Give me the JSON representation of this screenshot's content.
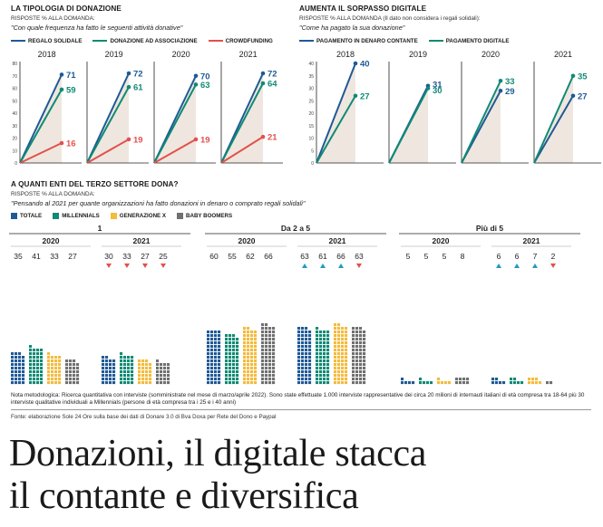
{
  "sections": {
    "donation_type": {
      "title": "LA TIPOLOGIA DI DONAZIONE",
      "subtitle": "RISPOSTE % ALLA DOMANDA:",
      "question": "\"Con quale frequenza ha fatto le seguenti attività donative\""
    },
    "digital": {
      "title": "AUMENTA IL SORPASSO DIGITALE",
      "subtitle": "RISPOSTE % ALLA DOMANDA (Il dato non considera i regali solidali):",
      "question": "\"Come ha pagato la sua donazione\""
    },
    "third_sector": {
      "title": "A QUANTI ENTI DEL TERZO SETTORE DONA?",
      "subtitle": "RISPOSTE % ALLA DOMANDA:",
      "question": "\"Pensando al 2021 per quante organizzazioni ha fatto donazioni in denaro o comprato regali solidali\""
    }
  },
  "note": "Nota metodologica: Ricerca quantitativa con interviste (somministrate nel mese di marzo/aprile 2022). Sono state effettuate 1.000 interviste rappresentative dei circa 20 milioni di internauti italiani di età compresa tra 18-64 più 30 interviste qualitative individuali a Millennials (persone di età compresa tra i 25 e i 40 anni)",
  "source": "Fonte: elaborazione Sole 24 Ore sulla base dei dati di Donare 3.0 di Bva Doxa per Rete del Dono e Paypal",
  "headline": {
    "line1": "Donazioni, il digitale stacca",
    "line2": "il contante e diversifica"
  },
  "colors": {
    "blue": "#1f5a96",
    "green": "#108a74",
    "red": "#e2514c",
    "yellow": "#f4bb3c",
    "gray": "#707070",
    "fill": "#efe7df"
  },
  "chart_data": [
    {
      "type": "line",
      "id": "donation_type",
      "panels": [
        "2018",
        "2019",
        "2020",
        "2021"
      ],
      "ylim": [
        0,
        80
      ],
      "yticks": [
        0,
        10,
        20,
        30,
        40,
        50,
        60,
        70,
        80
      ],
      "series": [
        {
          "name": "REGALO SOLIDALE",
          "color": "#1f5a96",
          "values": [
            71,
            72,
            70,
            72
          ]
        },
        {
          "name": "DONAZIONE AD ASSOCIAZIONE",
          "color": "#108a74",
          "values": [
            59,
            61,
            63,
            64
          ]
        },
        {
          "name": "CROWDFUNDING",
          "color": "#e2514c",
          "values": [
            16,
            19,
            19,
            21
          ]
        }
      ],
      "value_labels": [
        [
          "71",
          "59",
          "16"
        ],
        [
          "72",
          "61",
          "19"
        ],
        [
          "70",
          "63",
          "19"
        ],
        [
          "72",
          "64",
          "21"
        ]
      ],
      "grid": false,
      "legend": "top"
    },
    {
      "type": "line",
      "id": "digital",
      "panels": [
        "2018",
        "2019",
        "2020",
        "2021"
      ],
      "ylim": [
        0,
        40
      ],
      "yticks": [
        0,
        5,
        10,
        15,
        20,
        25,
        30,
        35,
        40
      ],
      "series": [
        {
          "name": "PAGAMENTO IN DENARO CONTANTE",
          "color": "#1f5a96",
          "values": [
            40,
            31,
            29,
            27
          ]
        },
        {
          "name": "PAGAMENTO DIGITALE",
          "color": "#108a74",
          "values": [
            27,
            30,
            33,
            35
          ]
        }
      ],
      "value_labels": [
        [
          "40",
          "27"
        ],
        [
          "31",
          "30"
        ],
        [
          "29",
          "33"
        ],
        [
          "27",
          "35"
        ]
      ],
      "grid": false,
      "legend": "top"
    },
    {
      "type": "bar",
      "id": "third_sector",
      "series_names": [
        "TOTALE",
        "MILLENNIALS",
        "GENERAZIONE X",
        "BABY BOOMERS"
      ],
      "series_colors": [
        "#1f5a96",
        "#108a74",
        "#f4bb3c",
        "#707070"
      ],
      "groups": [
        {
          "label": "1",
          "years": [
            {
              "year": "2020",
              "values": [
                35,
                41,
                33,
                27
              ],
              "labels": [
                "35",
                "41",
                "33",
                "27"
              ],
              "trend": []
            },
            {
              "year": "2021",
              "values": [
                30,
                33,
                27,
                25
              ],
              "labels": [
                "30",
                "33",
                "27",
                "25"
              ],
              "trend": [
                "down",
                "down",
                "down",
                "down"
              ]
            }
          ]
        },
        {
          "label": "Da 2 a 5",
          "years": [
            {
              "year": "2020",
              "values": [
                60,
                55,
                62,
                66
              ],
              "labels": [
                "60",
                "55",
                "62",
                "66"
              ],
              "trend": []
            },
            {
              "year": "2021",
              "values": [
                63,
                61,
                66,
                63
              ],
              "labels": [
                "63",
                "61",
                "66",
                "63"
              ],
              "trend": [
                "up",
                "up",
                "up",
                "down"
              ]
            }
          ]
        },
        {
          "label": "Più di 5",
          "years": [
            {
              "year": "2020",
              "values": [
                5,
                5,
                5,
                8
              ],
              "labels": [
                "5",
                "5",
                "5",
                "8"
              ],
              "trend": []
            },
            {
              "year": "2021",
              "values": [
                6,
                6,
                7,
                2
              ],
              "labels": [
                "6",
                "6",
                "7",
                "2"
              ],
              "trend": [
                "up",
                "up",
                "up",
                "down"
              ]
            }
          ]
        }
      ],
      "legend": "top-left"
    }
  ]
}
